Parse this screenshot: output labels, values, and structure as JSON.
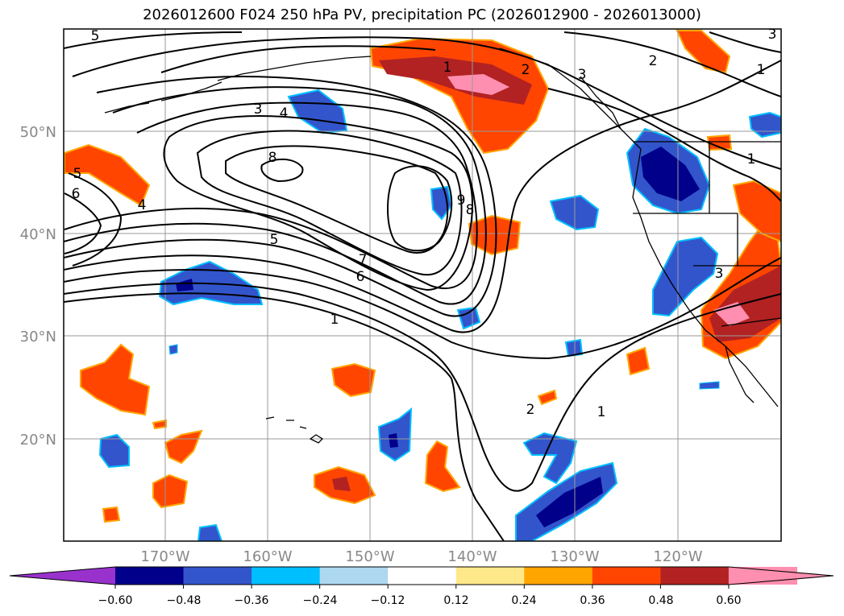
{
  "title": "2026012600 F024 250 hPa PV, precipitation PC (2026012900 - 2026013000)",
  "map": {
    "lon_range": [
      -180,
      -110
    ],
    "lat_range": [
      10,
      60
    ],
    "lon_ticks": [
      "170°W",
      "160°W",
      "150°W",
      "140°W",
      "130°W",
      "120°W"
    ],
    "lat_ticks": [
      "50°N",
      "40°N",
      "30°N",
      "20°N"
    ],
    "tick_color": "#888888",
    "grid": true
  },
  "contour_labels": [
    "5",
    "3",
    "4",
    "8",
    "5",
    "6",
    "4",
    "1",
    "2",
    "3",
    "3",
    "2",
    "1",
    "9",
    "8",
    "7",
    "6",
    "5",
    "1",
    "2",
    "1",
    "1",
    "3"
  ],
  "colorbar": {
    "ticks": [
      "−0.60",
      "−0.48",
      "−0.36",
      "−0.24",
      "−0.12",
      "0.12",
      "0.24",
      "0.36",
      "0.48",
      "0.60"
    ],
    "colors": {
      "below": "#9932cc",
      "bins": [
        "#00008b",
        "#3355cc",
        "#00bfff",
        "#add8f0",
        "#ffffff",
        "#ffe88a",
        "#ffa500",
        "#ff4500",
        "#b22222",
        "#ff8fb0"
      ],
      "above": "#ff8fb0"
    }
  }
}
